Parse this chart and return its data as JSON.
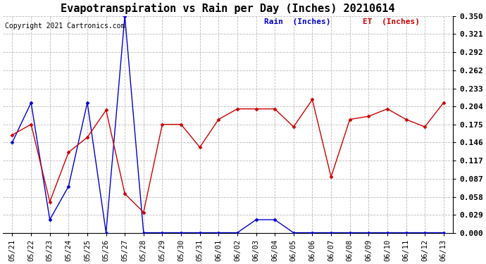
{
  "title": "Evapotranspiration vs Rain per Day (Inches) 20210614",
  "copyright": "Copyright 2021 Cartronics.com",
  "legend_rain": "Rain  (Inches)",
  "legend_et": "ET  (Inches)",
  "dates": [
    "05/21",
    "05/22",
    "05/23",
    "05/24",
    "05/25",
    "05/26",
    "05/27",
    "05/28",
    "05/29",
    "05/30",
    "05/31",
    "06/01",
    "06/02",
    "06/03",
    "06/04",
    "06/05",
    "06/06",
    "06/07",
    "06/08",
    "06/09",
    "06/10",
    "06/11",
    "06/12",
    "06/13"
  ],
  "rain": [
    0.146,
    0.21,
    0.021,
    0.075,
    0.21,
    0.0,
    0.35,
    0.0,
    0.0,
    0.0,
    0.0,
    0.0,
    0.0,
    0.021,
    0.021,
    0.0,
    0.0,
    0.0,
    0.0,
    0.0,
    0.0,
    0.0,
    0.0,
    0.0
  ],
  "et": [
    0.158,
    0.175,
    0.05,
    0.13,
    0.154,
    0.198,
    0.063,
    0.033,
    0.175,
    0.175,
    0.138,
    0.183,
    0.2,
    0.2,
    0.2,
    0.171,
    0.215,
    0.09,
    0.183,
    0.188,
    0.2,
    0.183,
    0.171,
    0.21
  ],
  "ylim": [
    0.0,
    0.35
  ],
  "yticks": [
    0.0,
    0.029,
    0.058,
    0.087,
    0.117,
    0.146,
    0.175,
    0.204,
    0.233,
    0.262,
    0.292,
    0.321,
    0.35
  ],
  "rain_color": "#0000cc",
  "et_color": "#cc0000",
  "background_color": "#ffffff",
  "grid_color": "#bbbbbb",
  "title_fontsize": 11,
  "copyright_fontsize": 7,
  "legend_fontsize": 8,
  "tick_fontsize": 7.5,
  "figwidth": 6.9,
  "figheight": 3.75,
  "dpi": 100
}
